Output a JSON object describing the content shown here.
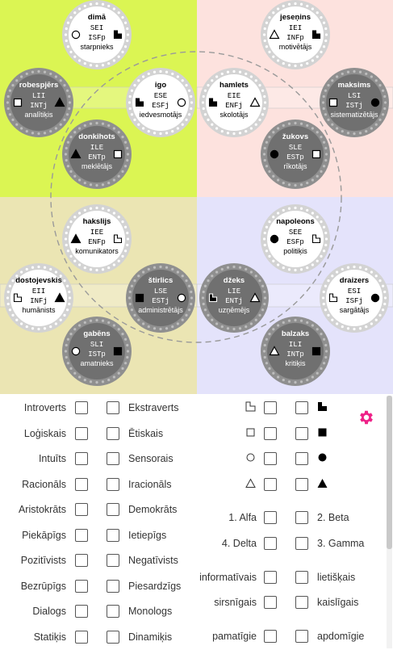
{
  "colors": {
    "alpha_bg": "#dbf553",
    "beta_bg": "#fde2de",
    "gamma_bg": "#e4e3fb",
    "delta_bg": "#ebe5b3",
    "settings": "#ee2288"
  },
  "types": [
    {
      "id": "dima",
      "name": "dimā",
      "code1": "SEI",
      "code2": "ISFp",
      "role": "starpnieks",
      "shade": "light",
      "left": "circle",
      "right": "ne-corner"
    },
    {
      "id": "jesenins",
      "name": "jeseņins",
      "code1": "IEI",
      "code2": "INFp",
      "role": "motivētājs",
      "shade": "light",
      "left": "triangle",
      "right": "ne-corner"
    },
    {
      "id": "robespjers",
      "name": "robespjērs",
      "code1": "LII",
      "code2": "INTj",
      "role": "analītiķis",
      "shade": "dark",
      "left": "square",
      "right": "triangle"
    },
    {
      "id": "igo",
      "name": "igo",
      "code1": "ESE",
      "code2": "ESFj",
      "role": "iedvesmotājs",
      "shade": "light",
      "left": "ne-corner",
      "right": "circle"
    },
    {
      "id": "hamlets",
      "name": "hamlets",
      "code1": "EIE",
      "code2": "ENFj",
      "role": "skolotājs",
      "shade": "light",
      "left": "ne-corner",
      "right": "triangle"
    },
    {
      "id": "maksims",
      "name": "maksims",
      "code1": "LSI",
      "code2": "ISTj",
      "role": "sistematizētājs",
      "shade": "dark",
      "left": "square",
      "right": "circle"
    },
    {
      "id": "donkihots",
      "name": "donkihots",
      "code1": "ILE",
      "code2": "ENTp",
      "role": "meklētājs",
      "shade": "dark",
      "left": "triangle",
      "right": "square"
    },
    {
      "id": "zukovs",
      "name": "žukovs",
      "code1": "SLE",
      "code2": "ESTp",
      "role": "rīkotājs",
      "shade": "dark",
      "left": "circle",
      "right": "square"
    },
    {
      "id": "hakslijs",
      "name": "hakslijs",
      "code1": "IEE",
      "code2": "ENFp",
      "role": "komunikators",
      "shade": "light",
      "left": "triangle",
      "right": "sw-corner"
    },
    {
      "id": "napoleons",
      "name": "napoleons",
      "code1": "SEE",
      "code2": "ESFp",
      "role": "politiķis",
      "shade": "light",
      "left": "circle",
      "right": "sw-corner"
    },
    {
      "id": "dostojevskis",
      "name": "dostojevskis",
      "code1": "EII",
      "code2": "INFj",
      "role": "humānists",
      "shade": "light",
      "left": "sw-corner",
      "right": "triangle"
    },
    {
      "id": "stirlics",
      "name": "štirlics",
      "code1": "LSE",
      "code2": "ESTj",
      "role": "administrētājs",
      "shade": "dark",
      "left": "square",
      "right": "circle"
    },
    {
      "id": "dzeks",
      "name": "džeks",
      "code1": "LIE",
      "code2": "ENTj",
      "role": "uzņēmējs",
      "shade": "dark",
      "left": "sw-corner",
      "right": "triangle"
    },
    {
      "id": "draizers",
      "name": "draizers",
      "code1": "ESI",
      "code2": "ISFj",
      "role": "sargātājs",
      "shade": "light",
      "left": "sw-corner",
      "right": "circle"
    },
    {
      "id": "gabens",
      "name": "gabēns",
      "code1": "SLI",
      "code2": "ISTp",
      "role": "amatnieks",
      "shade": "dark",
      "left": "circle",
      "right": "square"
    },
    {
      "id": "balzaks",
      "name": "balzaks",
      "code1": "ILI",
      "code2": "INTp",
      "role": "kritiķis",
      "shade": "dark",
      "left": "triangle",
      "right": "square"
    }
  ],
  "filters": {
    "dichotomies": [
      {
        "left": "Introverts",
        "right": "Ekstraverts"
      },
      {
        "left": "Loģiskais",
        "right": "Ētiskais"
      },
      {
        "left": "Intuīts",
        "right": "Sensorais"
      },
      {
        "left": "Racionāls",
        "right": "Iracionāls"
      },
      {
        "left": "Aristokrāts",
        "right": "Demokrāts"
      },
      {
        "left": "Piekāpīgs",
        "right": "Ietiepīgs"
      },
      {
        "left": "Pozitīvists",
        "right": "Negatīvists"
      },
      {
        "left": "Bezrūpīgs",
        "right": "Piesardzīgs"
      },
      {
        "left": "Dialogs",
        "right": "Monologs"
      },
      {
        "left": "Statiķis",
        "right": "Dinamiķis"
      }
    ],
    "symbols": [
      {
        "left": "sw-corner-outline",
        "right": "ne-corner-filled"
      },
      {
        "left": "square-outline",
        "right": "square-filled"
      },
      {
        "left": "circle-outline",
        "right": "circle-filled"
      },
      {
        "left": "triangle-outline",
        "right": "triangle-filled"
      }
    ],
    "quadras": [
      {
        "left": "1. Alfa",
        "right": "2. Beta"
      },
      {
        "left": "4. Delta",
        "right": "3. Gamma"
      }
    ],
    "temperament": [
      {
        "left": "informatīvais",
        "right": "lietišķais"
      },
      {
        "left": "sirsnīgais",
        "right": "kaislīgais"
      },
      {
        "left": "pamatīgie",
        "right": "apdomīgie"
      }
    ]
  },
  "settings_icon": "gear-icon"
}
